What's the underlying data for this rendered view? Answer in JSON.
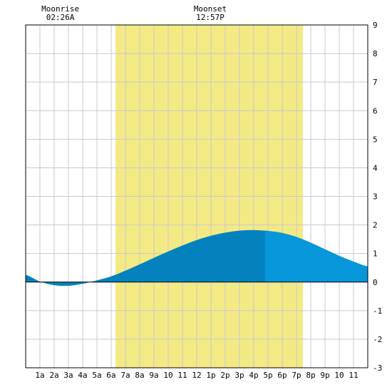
{
  "chart_data": {
    "type": "area",
    "title": "",
    "xlabel": "",
    "ylabel": "",
    "xlim": [
      0,
      24
    ],
    "ylim": [
      -3,
      9
    ],
    "y_ticks": [
      -3,
      -2,
      -1,
      0,
      1,
      2,
      3,
      4,
      5,
      6,
      7,
      8,
      9
    ],
    "x_ticks": [
      {
        "hour": 1,
        "label": "1a"
      },
      {
        "hour": 2,
        "label": "2a"
      },
      {
        "hour": 3,
        "label": "3a"
      },
      {
        "hour": 4,
        "label": "4a"
      },
      {
        "hour": 5,
        "label": "5a"
      },
      {
        "hour": 6,
        "label": "6a"
      },
      {
        "hour": 7,
        "label": "7a"
      },
      {
        "hour": 8,
        "label": "8a"
      },
      {
        "hour": 9,
        "label": "9a"
      },
      {
        "hour": 10,
        "label": "10"
      },
      {
        "hour": 11,
        "label": "11"
      },
      {
        "hour": 12,
        "label": "12"
      },
      {
        "hour": 13,
        "label": "1p"
      },
      {
        "hour": 14,
        "label": "2p"
      },
      {
        "hour": 15,
        "label": "3p"
      },
      {
        "hour": 16,
        "label": "4p"
      },
      {
        "hour": 17,
        "label": "5p"
      },
      {
        "hour": 18,
        "label": "6p"
      },
      {
        "hour": 19,
        "label": "7p"
      },
      {
        "hour": 20,
        "label": "8p"
      },
      {
        "hour": 21,
        "label": "9p"
      },
      {
        "hour": 22,
        "label": "10"
      },
      {
        "hour": 23,
        "label": "11"
      }
    ],
    "grid": true,
    "daylight": {
      "start_hour": 6.3,
      "end_hour": 19.45
    },
    "events": [
      {
        "name": "Moonrise",
        "time": "02:26A",
        "hour": 2.43
      },
      {
        "name": "Moonset",
        "time": "12:57P",
        "hour": 12.95
      }
    ],
    "series": [
      {
        "x": [
          0,
          1,
          2,
          3,
          4,
          5,
          6,
          7,
          8,
          9,
          10,
          11,
          12,
          13,
          14,
          15,
          16,
          16.8,
          17,
          18,
          19,
          20,
          21,
          22,
          23,
          24
        ],
        "y": [
          0.25,
          0.02,
          -0.11,
          -0.13,
          -0.06,
          0.06,
          0.2,
          0.4,
          0.62,
          0.85,
          1.07,
          1.28,
          1.47,
          1.62,
          1.73,
          1.8,
          1.82,
          1.8,
          1.79,
          1.72,
          1.58,
          1.38,
          1.15,
          0.92,
          0.72,
          0.55
        ]
      }
    ],
    "high_tide_hour": 16.8,
    "colors": {
      "daylight": "#f3ea86",
      "grid": "#c8c8c8",
      "tide_rising": "#0482bd",
      "tide_falling": "#0696d9",
      "frame": "#000000"
    }
  }
}
